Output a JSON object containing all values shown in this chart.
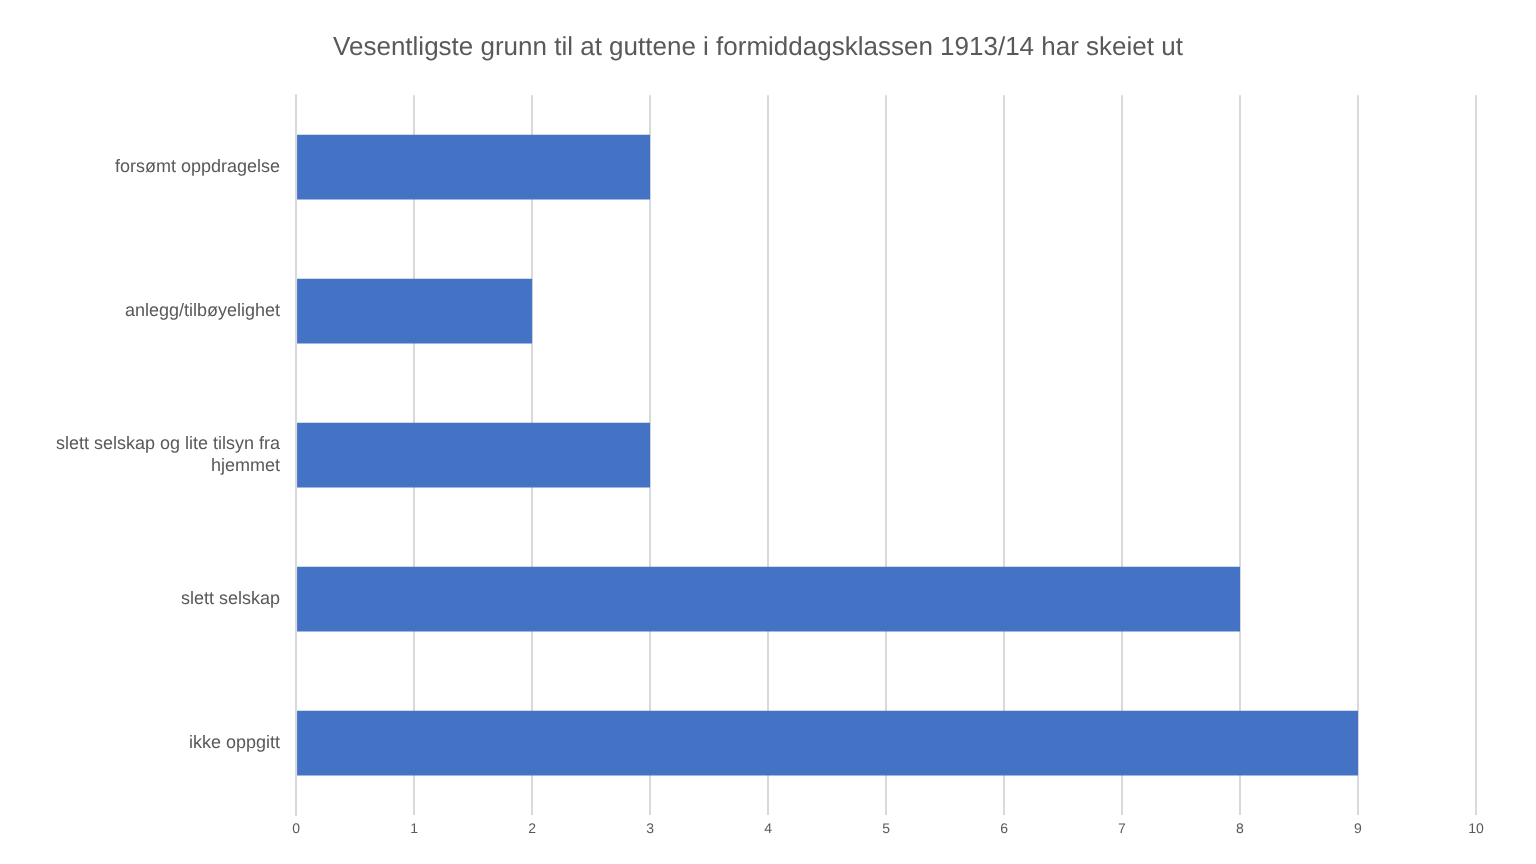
{
  "chart_data": {
    "type": "bar",
    "orientation": "horizontal",
    "title": "Vesentligste grunn til at guttene i formiddagsklassen 1913/14 har skeiet ut",
    "categories": [
      "forsømt oppdragelse",
      "anlegg/tilbøyelighet",
      "slett selskap og lite tilsyn fra hjemmet",
      "slett selskap",
      "ikke oppgitt"
    ],
    "values": [
      3,
      2,
      3,
      8,
      9
    ],
    "color": "#4472c4",
    "xlim": [
      0,
      10
    ],
    "xticks": [
      0,
      1,
      2,
      3,
      4,
      5,
      6,
      7,
      8,
      9,
      10
    ],
    "grid": "x",
    "legend": false
  }
}
